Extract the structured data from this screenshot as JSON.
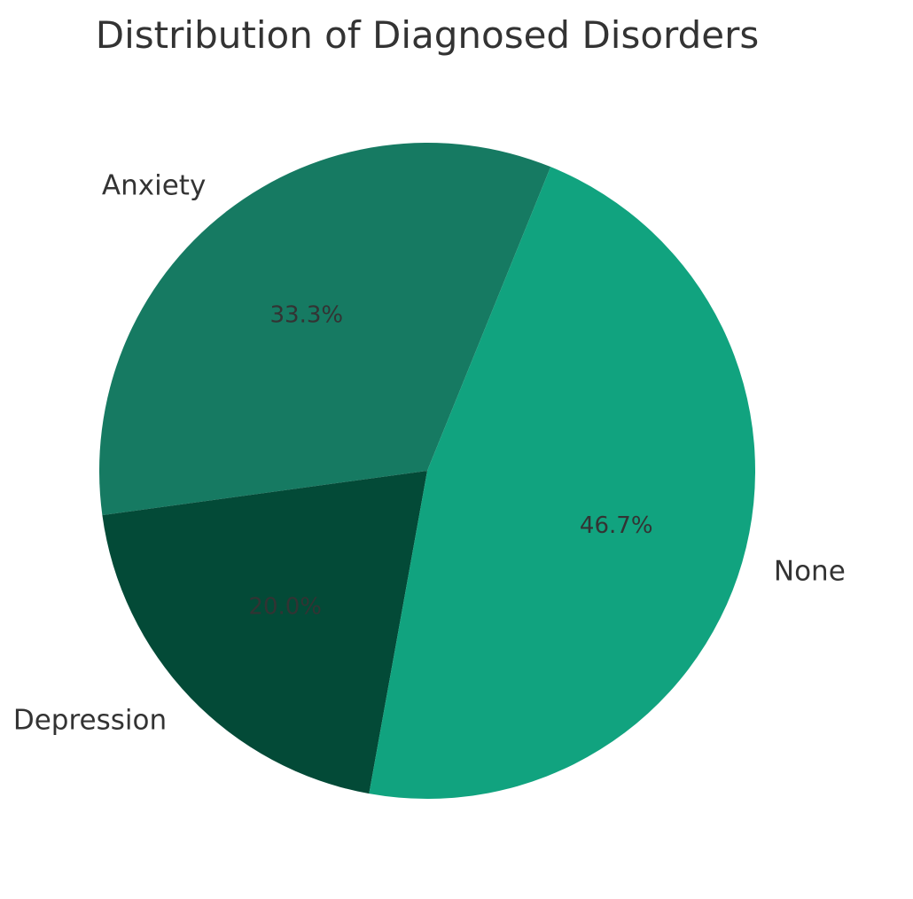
{
  "chart_data": {
    "type": "pie",
    "title": "Distribution of Diagnosed Disorders",
    "categories": [
      "Anxiety",
      "Depression",
      "None"
    ],
    "values": [
      33.3,
      20.0,
      46.7
    ],
    "labels": [
      "33.3%",
      "20.0%",
      "46.7%"
    ],
    "colors": [
      "#167a62",
      "#034a37",
      "#11a37f"
    ],
    "legend": "none"
  }
}
